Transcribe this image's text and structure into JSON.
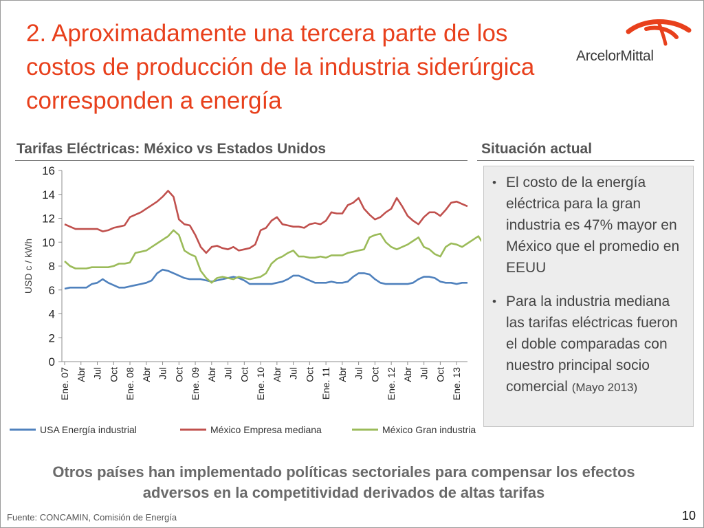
{
  "slide": {
    "title": "2. Aproximadamente una tercera parte de los costos de producción de la industria siderúrgica corresponden a energía",
    "logo_text": "ArcelorMittal",
    "chart_heading": "Tarifas Eléctricas: México vs Estados Unidos",
    "side_heading": "Situación actual",
    "bullets": [
      {
        "text": "El costo de la energía eléctrica para la gran industria es 47% mayor  en México que el promedio en EEUU",
        "note": ""
      },
      {
        "text": "Para la industria mediana las tarifas eléctricas fueron el doble comparadas con nuestro principal socio comercial ",
        "note": "(Mayo 2013)"
      }
    ],
    "footer_message": "Otros países han implementado  políticas sectoriales para compensar los efectos adversos en la competitividad derivados de altas tarifas",
    "source": "Fuente: CONCAMIN, Comisión de Energía",
    "page_number": "10",
    "colors": {
      "title": "#e8401c",
      "logo_accent": "#e8401c"
    },
    "icons": {
      "logo": "arcelormittal-logo"
    }
  },
  "chart_data": {
    "type": "line",
    "title": "",
    "ylabel": "USD c / kWh",
    "xlabel": "",
    "ylim": [
      0,
      16
    ],
    "yticks": [
      0,
      2,
      4,
      6,
      8,
      10,
      12,
      14,
      16
    ],
    "grid": false,
    "legend": "bottom",
    "x_tick_labels": [
      "Ene. 07",
      "Abr",
      "Jul",
      "Oct",
      "Ene. 08",
      "Abr",
      "Jul",
      "Oct",
      "Ene. 09",
      "Abr",
      "Jul",
      "Oct",
      "Ene. 10",
      "Abr",
      "Jul",
      "Oct",
      "Ene. 11",
      "Abr",
      "Jul",
      "Oct",
      "Ene. 12",
      "Abr",
      "Jul",
      "Oct",
      "Ene. 13"
    ],
    "series": [
      {
        "name": "USA Energía industrial",
        "color": "#4f81bd",
        "values": [
          6.1,
          6.2,
          6.2,
          6.2,
          6.2,
          6.5,
          6.6,
          6.9,
          6.6,
          6.4,
          6.2,
          6.2,
          6.3,
          6.4,
          6.5,
          6.6,
          6.8,
          7.4,
          7.7,
          7.6,
          7.4,
          7.2,
          7.0,
          6.9,
          6.9,
          6.9,
          6.8,
          6.7,
          6.8,
          6.9,
          7.0,
          7.1,
          7.0,
          6.8,
          6.5,
          6.5,
          6.5,
          6.5,
          6.5,
          6.6,
          6.7,
          6.9,
          7.2,
          7.2,
          7.0,
          6.8,
          6.6,
          6.6,
          6.6,
          6.7,
          6.6,
          6.6,
          6.7,
          7.1,
          7.4,
          7.4,
          7.3,
          6.9,
          6.6,
          6.5,
          6.5,
          6.5,
          6.5,
          6.5,
          6.6,
          6.9,
          7.1,
          7.1,
          7.0,
          6.7,
          6.6,
          6.6,
          6.5,
          6.6,
          6.6
        ]
      },
      {
        "name": "México Empresa mediana",
        "color": "#c0504d",
        "values": [
          11.5,
          11.3,
          11.1,
          11.1,
          11.1,
          11.1,
          11.1,
          10.9,
          11.0,
          11.2,
          11.3,
          11.4,
          12.1,
          12.3,
          12.5,
          12.8,
          13.1,
          13.4,
          13.8,
          14.3,
          13.8,
          11.9,
          11.5,
          11.4,
          10.6,
          9.6,
          9.1,
          9.6,
          9.7,
          9.5,
          9.4,
          9.6,
          9.3,
          9.4,
          9.5,
          9.8,
          11.0,
          11.2,
          11.8,
          12.1,
          11.5,
          11.4,
          11.3,
          11.3,
          11.2,
          11.5,
          11.6,
          11.5,
          11.8,
          12.5,
          12.4,
          12.4,
          13.1,
          13.3,
          13.7,
          12.8,
          12.3,
          11.9,
          12.1,
          12.5,
          12.8,
          13.7,
          13.0,
          12.2,
          11.8,
          11.5,
          12.1,
          12.5,
          12.5,
          12.2,
          12.7,
          13.3,
          13.4,
          13.2,
          13.0
        ]
      },
      {
        "name": "México Gran industria",
        "color": "#9bbb59",
        "values": [
          8.4,
          8.0,
          7.8,
          7.8,
          7.8,
          7.9,
          7.9,
          7.9,
          7.9,
          8.0,
          8.2,
          8.2,
          8.3,
          9.1,
          9.2,
          9.3,
          9.6,
          9.9,
          10.2,
          10.5,
          11.0,
          10.6,
          9.3,
          9.0,
          8.8,
          7.6,
          7.0,
          6.6,
          7.0,
          7.1,
          7.0,
          6.9,
          7.1,
          7.0,
          6.9,
          7.0,
          7.1,
          7.4,
          8.2,
          8.6,
          8.8,
          9.1,
          9.3,
          8.8,
          8.8,
          8.7,
          8.7,
          8.8,
          8.7,
          8.9,
          8.9,
          8.9,
          9.1,
          9.2,
          9.3,
          9.4,
          10.4,
          10.6,
          10.7,
          10.0,
          9.6,
          9.4,
          9.6,
          9.8,
          10.1,
          10.4,
          9.6,
          9.4,
          9.0,
          8.8,
          9.6,
          9.9,
          9.8,
          9.6,
          9.9,
          10.2,
          10.5,
          9.8,
          9.7
        ]
      }
    ]
  }
}
